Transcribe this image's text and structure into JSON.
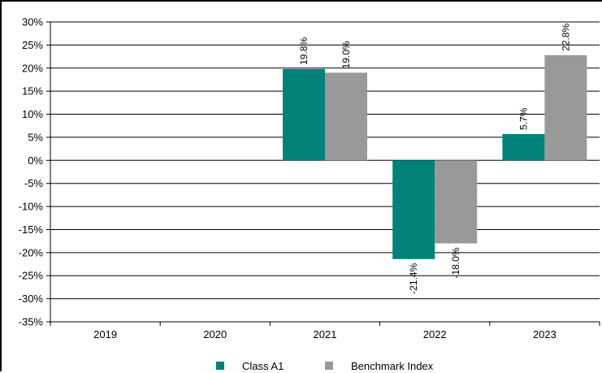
{
  "chart_data": {
    "type": "bar",
    "categories": [
      "2019",
      "2020",
      "2021",
      "2022",
      "2023"
    ],
    "series": [
      {
        "name": "Class A1",
        "color": "#00827a",
        "values": [
          null,
          null,
          19.8,
          -21.4,
          5.7
        ],
        "labels": [
          "",
          "",
          "19.8%",
          "-21.4%",
          "5.7%"
        ]
      },
      {
        "name": "Benchmark Index",
        "color": "#999999",
        "values": [
          null,
          null,
          19.0,
          -18.0,
          22.8
        ],
        "labels": [
          "",
          "",
          "19.0%",
          "-18.0%",
          "22.8%"
        ]
      }
    ],
    "ylim": [
      -35,
      30
    ],
    "yticks": [
      30,
      25,
      20,
      15,
      10,
      5,
      0,
      -5,
      -10,
      -15,
      -20,
      -25,
      -30,
      -35
    ],
    "ytick_labels": [
      "30%",
      "25%",
      "20%",
      "15%",
      "10%",
      "5%",
      "0%",
      "-5%",
      "-10%",
      "-15%",
      "-20%",
      "-25%",
      "-30%",
      "-35%"
    ],
    "grid": true,
    "legend_position": "bottom-center"
  }
}
